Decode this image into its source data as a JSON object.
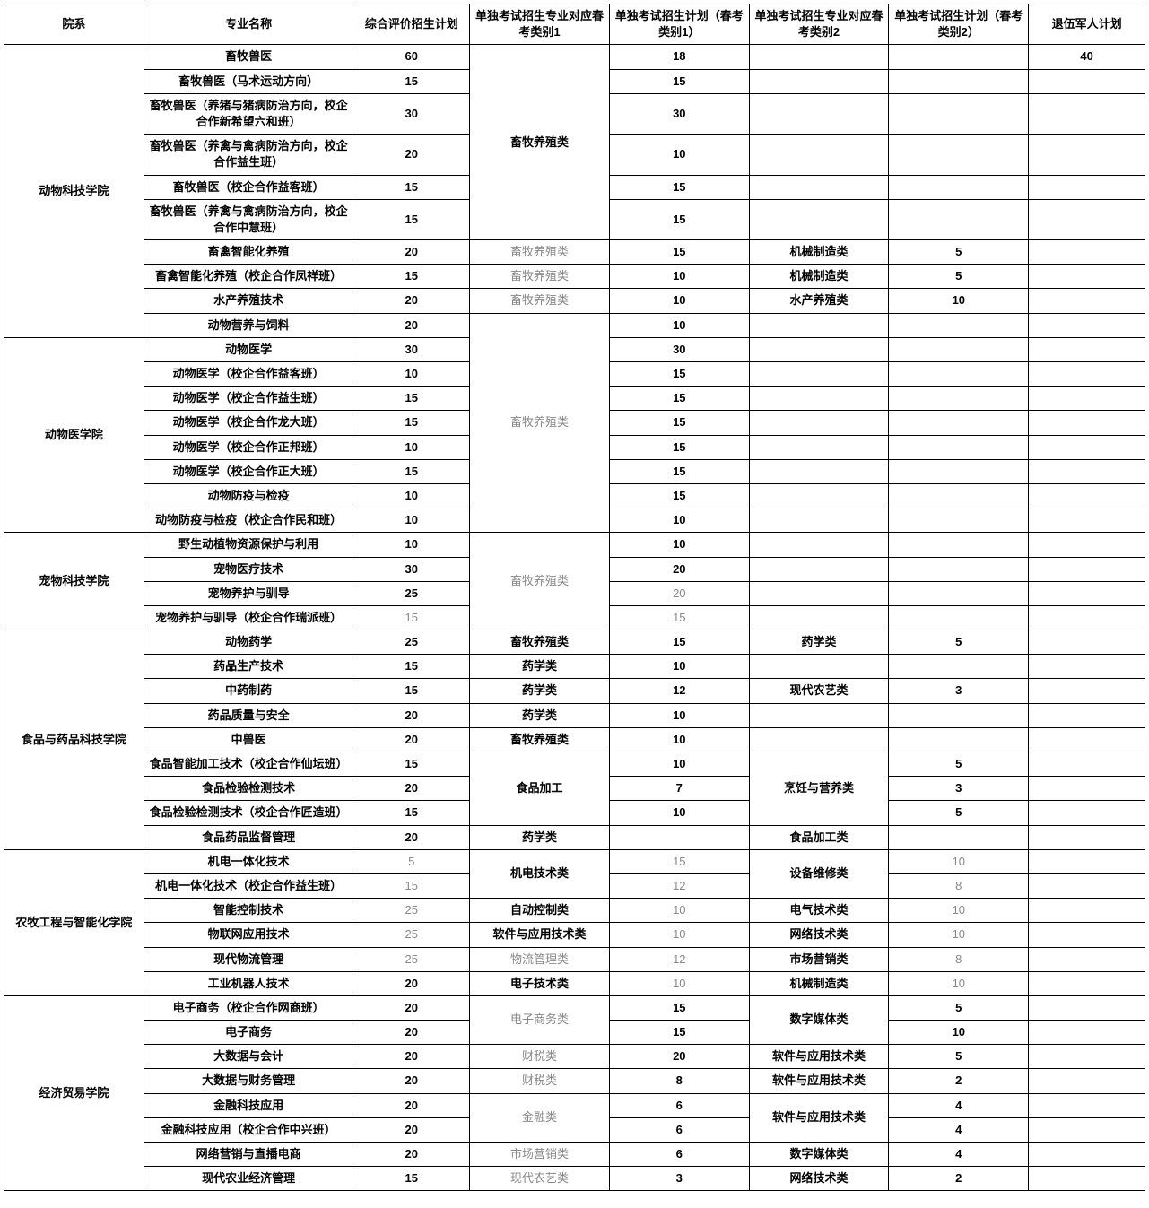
{
  "headers": [
    "院系",
    "专业名称",
    "综合评价招生计划",
    "单独考试招生专业对应春考类别1",
    "单独考试招生计划（春考类别1）",
    "单独考试招生专业对应春考类别2",
    "单独考试招生计划（春考类别2）",
    "退伍军人计划"
  ],
  "depts": [
    {
      "name": "动物科技学院",
      "rows": [
        {
          "major": "畜牧兽医",
          "plan": "60",
          "cat1": "畜牧养殖类",
          "cat1_span": 6,
          "p1": "18",
          "cat2": "",
          "p2": "",
          "tuiwu": "40"
        },
        {
          "major": "畜牧兽医（马术运动方向）",
          "plan": "15",
          "p1": "15",
          "cat2": "",
          "p2": "",
          "tuiwu": ""
        },
        {
          "major": "畜牧兽医（养猪与猪病防治方向，校企合作新希望六和班）",
          "plan": "30",
          "p1": "30",
          "cat2": "",
          "p2": "",
          "tuiwu": ""
        },
        {
          "major": "畜牧兽医（养禽与禽病防治方向，校企合作益生班）",
          "plan": "20",
          "p1": "10",
          "cat2": "",
          "p2": "",
          "tuiwu": ""
        },
        {
          "major": "畜牧兽医（校企合作益客班）",
          "plan": "15",
          "p1": "15",
          "cat2": "",
          "p2": "",
          "tuiwu": ""
        },
        {
          "major": "畜牧兽医（养禽与禽病防治方向，校企合作中慧班）",
          "plan": "15",
          "p1": "15",
          "cat2": "",
          "p2": "",
          "tuiwu": ""
        },
        {
          "major": "畜禽智能化养殖",
          "plan": "20",
          "cat1": "畜牧养殖类",
          "cat1_faded": true,
          "p1": "15",
          "cat2": "机械制造类",
          "p2": "5",
          "tuiwu": ""
        },
        {
          "major": "畜禽智能化养殖（校企合作凤祥班）",
          "plan": "15",
          "cat1": "畜牧养殖类",
          "cat1_faded": true,
          "p1": "10",
          "cat2": "机械制造类",
          "p2": "5",
          "tuiwu": ""
        },
        {
          "major": "水产养殖技术",
          "plan": "20",
          "cat1": "畜牧养殖类",
          "cat1_faded": true,
          "p1": "10",
          "cat2": "水产养殖类",
          "p2": "10",
          "tuiwu": ""
        },
        {
          "major": "动物营养与饲料",
          "plan": "20",
          "cat1": "畜牧养殖类",
          "cat1_span": 9,
          "cat1_faded": true,
          "cat1_cross": true,
          "p1": "10",
          "cat2": "",
          "p2": "",
          "tuiwu": ""
        }
      ]
    },
    {
      "name": "动物医学院",
      "rows": [
        {
          "major": "动物医学",
          "plan": "30",
          "p1": "30",
          "cat2": "",
          "p2": "",
          "tuiwu": ""
        },
        {
          "major": "动物医学（校企合作益客班）",
          "plan": "10",
          "p1": "15",
          "cat2": "",
          "p2": "",
          "tuiwu": ""
        },
        {
          "major": "动物医学（校企合作益生班）",
          "plan": "15",
          "p1": "15",
          "cat2": "",
          "p2": "",
          "tuiwu": ""
        },
        {
          "major": "动物医学（校企合作龙大班）",
          "plan": "15",
          "p1": "15",
          "cat2": "",
          "p2": "",
          "tuiwu": ""
        },
        {
          "major": "动物医学（校企合作正邦班）",
          "plan": "10",
          "p1": "15",
          "cat2": "",
          "p2": "",
          "tuiwu": ""
        },
        {
          "major": "动物医学（校企合作正大班）",
          "plan": "15",
          "p1": "15",
          "cat2": "",
          "p2": "",
          "tuiwu": ""
        },
        {
          "major": "动物防疫与检疫",
          "plan": "10",
          "p1": "15",
          "cat2": "",
          "p2": "",
          "tuiwu": ""
        },
        {
          "major": "动物防疫与检疫（校企合作民和班）",
          "plan": "10",
          "p1": "10",
          "cat2": "",
          "p2": "",
          "tuiwu": ""
        }
      ]
    },
    {
      "name": "宠物科技学院",
      "rows": [
        {
          "major": "野生动植物资源保护与利用",
          "plan": "10",
          "cat1": "畜牧养殖类",
          "cat1_span": 4,
          "cat1_faded": true,
          "p1": "10",
          "cat2": "",
          "p2": "",
          "tuiwu": ""
        },
        {
          "major": "宠物医疗技术",
          "plan": "30",
          "p1": "20",
          "cat2": "",
          "p2": "",
          "tuiwu": ""
        },
        {
          "major": "宠物养护与驯导",
          "plan": "25",
          "p1": "20",
          "p1_faded": true,
          "cat2": "",
          "p2": "",
          "tuiwu": ""
        },
        {
          "major": "宠物养护与驯导（校企合作瑞派班）",
          "plan": "15",
          "plan_faded": true,
          "p1": "15",
          "p1_faded": true,
          "cat2": "",
          "p2": "",
          "tuiwu": ""
        }
      ]
    },
    {
      "name": "食品与药品科技学院",
      "rows": [
        {
          "major": "动物药学",
          "plan": "25",
          "cat1": "畜牧养殖类",
          "p1": "15",
          "cat2": "药学类",
          "p2": "5",
          "tuiwu": ""
        },
        {
          "major": "药品生产技术",
          "plan": "15",
          "cat1": "药学类",
          "p1": "10",
          "cat2": "",
          "p2": "",
          "tuiwu": ""
        },
        {
          "major": "中药制药",
          "plan": "15",
          "cat1": "药学类",
          "p1": "12",
          "cat2": "现代农艺类",
          "p2": "3",
          "tuiwu": ""
        },
        {
          "major": "药品质量与安全",
          "plan": "20",
          "cat1": "药学类",
          "p1": "10",
          "cat2": "",
          "p2": "",
          "tuiwu": ""
        },
        {
          "major": "中兽医",
          "plan": "20",
          "cat1": "畜牧养殖类",
          "p1": "10",
          "cat2": "",
          "p2": "",
          "tuiwu": ""
        },
        {
          "major": "食品智能加工技术（校企合作仙坛班）",
          "plan": "15",
          "cat1": "食品加工",
          "cat1_span": 3,
          "p1": "10",
          "cat2": "烹饪与营养类",
          "cat2_span": 3,
          "p2": "5",
          "tuiwu": ""
        },
        {
          "major": "食品检验检测技术",
          "plan": "20",
          "p1": "7",
          "p2": "3",
          "tuiwu": ""
        },
        {
          "major": "食品检验检测技术（校企合作匠造班）",
          "plan": "15",
          "p1": "10",
          "p2": "5",
          "tuiwu": ""
        },
        {
          "major": "食品药品监督管理",
          "plan": "20",
          "cat1": "药学类",
          "p1": "",
          "cat2": "食品加工类",
          "p2": "",
          "tuiwu": ""
        }
      ]
    },
    {
      "name": "农牧工程与智能化学院",
      "rows": [
        {
          "major": "机电一体化技术",
          "plan": "5",
          "plan_faded": true,
          "cat1": "机电技术类",
          "cat1_span": 2,
          "p1": "15",
          "p1_faded": true,
          "cat2": "设备维修类",
          "cat2_span": 2,
          "p2": "10",
          "p2_faded": true,
          "tuiwu": ""
        },
        {
          "major": "机电一体化技术（校企合作益生班）",
          "plan": "15",
          "plan_faded": true,
          "p1": "12",
          "p1_faded": true,
          "p2": "8",
          "p2_faded": true,
          "tuiwu": ""
        },
        {
          "major": "智能控制技术",
          "plan": "25",
          "plan_faded": true,
          "cat1": "自动控制类",
          "p1": "10",
          "p1_faded": true,
          "cat2": "电气技术类",
          "p2": "10",
          "p2_faded": true,
          "tuiwu": ""
        },
        {
          "major": "物联网应用技术",
          "plan": "25",
          "plan_faded": true,
          "cat1": "软件与应用技术类",
          "p1": "10",
          "p1_faded": true,
          "cat2": "网络技术类",
          "p2": "10",
          "p2_faded": true,
          "tuiwu": ""
        },
        {
          "major": "现代物流管理",
          "plan": "25",
          "plan_faded": true,
          "cat1": "物流管理类",
          "cat1_faded": true,
          "p1": "12",
          "p1_faded": true,
          "cat2": "市场营销类",
          "p2": "8",
          "p2_faded": true,
          "tuiwu": ""
        },
        {
          "major": "工业机器人技术",
          "plan": "20",
          "cat1": "电子技术类",
          "p1": "10",
          "p1_faded": true,
          "cat2": "机械制造类",
          "p2": "10",
          "p2_faded": true,
          "tuiwu": ""
        }
      ]
    },
    {
      "name": "经济贸易学院",
      "rows": [
        {
          "major": "电子商务（校企合作网商班）",
          "plan": "20",
          "cat1": "电子商务类",
          "cat1_span": 2,
          "cat1_faded": true,
          "p1": "15",
          "cat2": "数字媒体类",
          "cat2_span": 2,
          "p2": "5",
          "tuiwu": ""
        },
        {
          "major": "电子商务",
          "plan": "20",
          "p1": "15",
          "p2": "10",
          "tuiwu": ""
        },
        {
          "major": "大数据与会计",
          "plan": "20",
          "cat1": "财税类",
          "cat1_faded": true,
          "p1": "20",
          "cat2": "软件与应用技术类",
          "p2": "5",
          "tuiwu": ""
        },
        {
          "major": "大数据与财务管理",
          "plan": "20",
          "cat1": "财税类",
          "cat1_faded": true,
          "p1": "8",
          "cat2": "软件与应用技术类",
          "p2": "2",
          "tuiwu": ""
        },
        {
          "major": "金融科技应用",
          "plan": "20",
          "cat1": "金融类",
          "cat1_span": 2,
          "cat1_faded": true,
          "p1": "6",
          "cat2": "软件与应用技术类",
          "cat2_span": 2,
          "p2": "4",
          "tuiwu": ""
        },
        {
          "major": "金融科技应用（校企合作中兴班）",
          "plan": "20",
          "p1": "6",
          "p2": "4",
          "tuiwu": ""
        },
        {
          "major": "网络营销与直播电商",
          "plan": "20",
          "cat1": "市场营销类",
          "cat1_faded": true,
          "p1": "6",
          "cat2": "数字媒体类",
          "p2": "4",
          "tuiwu": ""
        },
        {
          "major": "现代农业经济管理",
          "plan": "15",
          "cat1": "现代农艺类",
          "cat1_faded": true,
          "p1": "3",
          "cat2": "网络技术类",
          "p2": "2",
          "tuiwu": ""
        }
      ]
    }
  ]
}
